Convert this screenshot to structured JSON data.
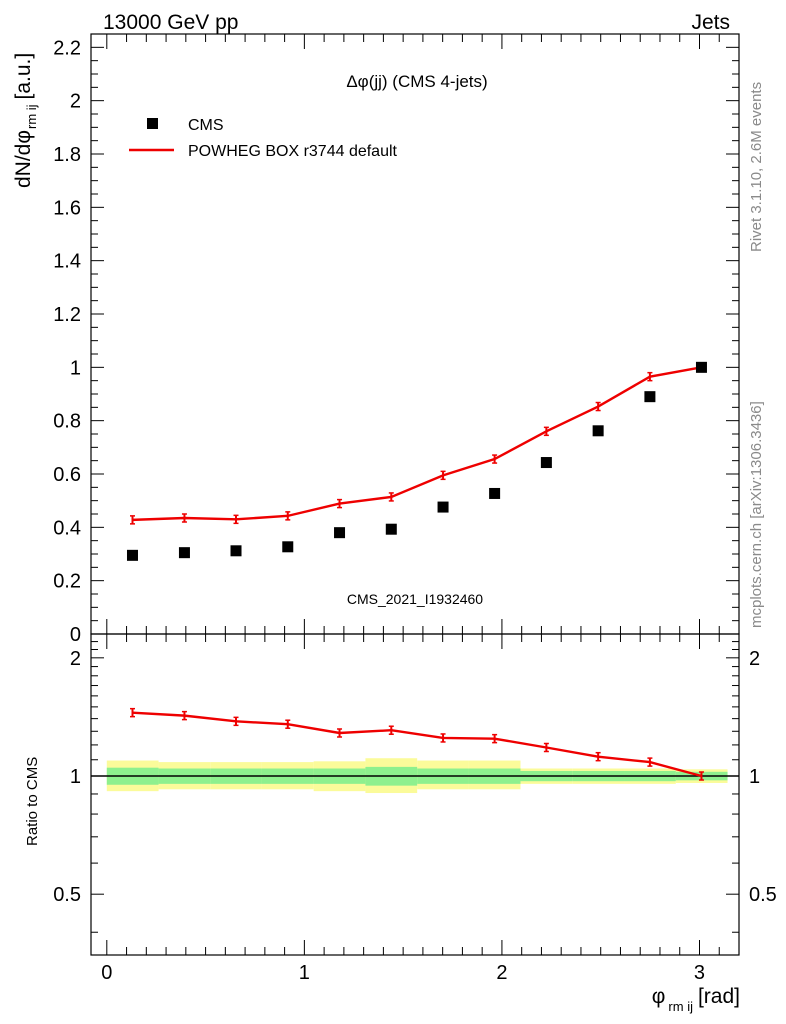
{
  "header": {
    "left": "13000 GeV pp",
    "right": "Jets"
  },
  "side_text": {
    "rivet": "Rivet 3.1.10,  2.6M events",
    "mcplots": "mcplots.cern.ch [arXiv:1306.3436]"
  },
  "analysis_id": "CMS_2021_I1932460",
  "chart_data": [
    {
      "type": "scatter",
      "title": "Δφ(jj) (CMS 4-jets)",
      "ylabel": {
        "main": "dN/dφ",
        "sub": "rm ij",
        "unit": "[a.u.]"
      },
      "xlim": [
        -0.08,
        3.2
      ],
      "ylim": [
        0,
        2.25
      ],
      "y_ticks": [
        0,
        0.2,
        0.4,
        0.6,
        0.8,
        1,
        1.2,
        1.4,
        1.6,
        1.8,
        2,
        2.2
      ],
      "y_tick_labels": [
        "0",
        "0.2",
        "0.4",
        "0.6",
        "0.8",
        "1",
        "1.2",
        "1.4",
        "1.6",
        "1.8",
        "2",
        "2.2"
      ],
      "legend_position": "top-left",
      "legend": [
        "CMS",
        "POWHEG BOX r3744 default"
      ],
      "x": [
        0.13,
        0.393,
        0.654,
        0.916,
        1.178,
        1.44,
        1.702,
        1.963,
        2.225,
        2.487,
        2.749,
        3.01
      ],
      "series": [
        {
          "name": "CMS",
          "color": "#000000",
          "marker": "square",
          "values": [
            0.295,
            0.305,
            0.312,
            0.327,
            0.38,
            0.393,
            0.476,
            0.527,
            0.643,
            0.762,
            0.89,
            1.0
          ]
        },
        {
          "name": "POWHEG BOX r3744 default",
          "color": "#ee0000",
          "marker": "line",
          "values": [
            0.428,
            0.435,
            0.43,
            0.443,
            0.489,
            0.514,
            0.595,
            0.656,
            0.76,
            0.853,
            0.965,
            1.0
          ]
        }
      ]
    },
    {
      "type": "line",
      "ylabel": "Ratio to CMS",
      "xlabel": {
        "main": "φ",
        "sub": "rm ij",
        "unit": "[rad]"
      },
      "xlim": [
        -0.08,
        3.2
      ],
      "ylim": [
        0.35,
        2.3
      ],
      "y_ticks": [
        0.5,
        1,
        2
      ],
      "y_tick_labels": [
        "0.5",
        "1",
        "2"
      ],
      "x_ticks": [
        0,
        1,
        2,
        3
      ],
      "x_tick_labels": [
        "0",
        "1",
        "2",
        "3"
      ],
      "reference_line": 1,
      "x": [
        0.13,
        0.393,
        0.654,
        0.916,
        1.178,
        1.44,
        1.702,
        1.963,
        2.225,
        2.487,
        2.749,
        3.01
      ],
      "bin_edges": [
        0,
        0.262,
        0.524,
        0.785,
        1.047,
        1.309,
        1.571,
        1.833,
        2.094,
        2.356,
        2.618,
        2.88,
        3.142
      ],
      "series": [
        {
          "name": "POWHEG BOX r3744 default",
          "color": "#ee0000",
          "values": [
            1.45,
            1.425,
            1.378,
            1.355,
            1.287,
            1.308,
            1.25,
            1.245,
            1.182,
            1.12,
            1.085,
            1.0
          ]
        }
      ],
      "bands": [
        {
          "name": "stat",
          "color": "#8ef08e",
          "lower": [
            0.95,
            0.955,
            0.955,
            0.955,
            0.955,
            0.945,
            0.955,
            0.955,
            0.97,
            0.97,
            0.97,
            0.975
          ],
          "upper": [
            1.05,
            1.045,
            1.045,
            1.045,
            1.045,
            1.055,
            1.045,
            1.045,
            1.03,
            1.03,
            1.03,
            1.025
          ]
        },
        {
          "name": "total",
          "color": "#fbfb9a",
          "lower": [
            0.915,
            0.925,
            0.925,
            0.925,
            0.915,
            0.905,
            0.925,
            0.925,
            0.955,
            0.955,
            0.955,
            0.96
          ],
          "upper": [
            1.095,
            1.085,
            1.085,
            1.085,
            1.09,
            1.11,
            1.095,
            1.095,
            1.045,
            1.045,
            1.045,
            1.04
          ]
        }
      ]
    }
  ]
}
